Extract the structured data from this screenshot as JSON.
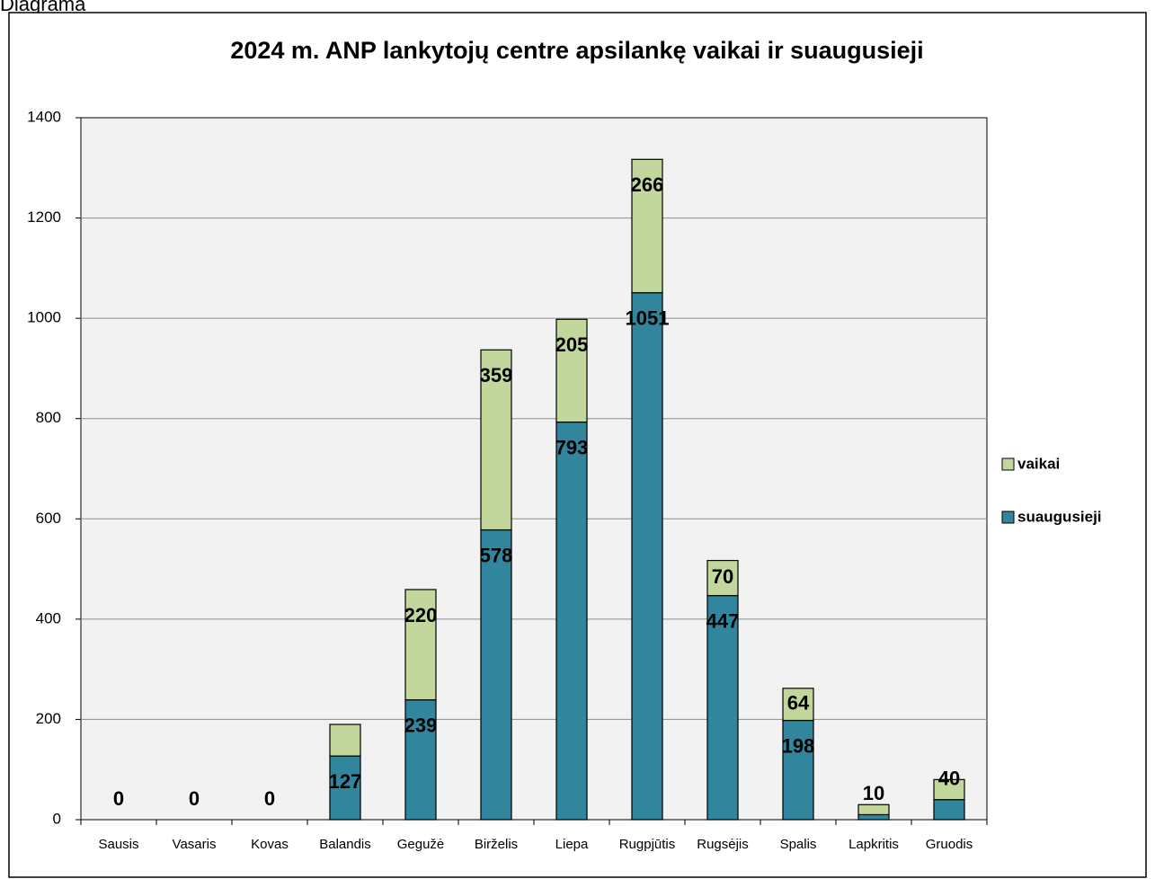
{
  "chart_data": {
    "type": "stacked_bar",
    "caption": "Diagrama",
    "title": "2024 m. ANP lankytojų centre apsilankę vaikai ir suaugusieji",
    "categories": [
      "Sausis",
      "Vasaris",
      "Kovas",
      "Balandis",
      "Gegužė",
      "Birželis",
      "Liepa",
      "Rugpjūtis",
      "Rugsėjis",
      "Spalis",
      "Lapkritis",
      "Gruodis"
    ],
    "series": [
      {
        "name": "suaugusieji",
        "color": "#31859c",
        "values": [
          0,
          0,
          0,
          127,
          239,
          578,
          793,
          1051,
          447,
          198,
          10,
          40
        ],
        "value_labels": [
          "0",
          "0",
          "0",
          "127",
          "239",
          "578",
          "793",
          "1051",
          "447",
          "198",
          "10",
          "40"
        ]
      },
      {
        "name": "vaikai",
        "color": "#c3d69b",
        "values": [
          0,
          0,
          0,
          63,
          220,
          359,
          205,
          266,
          70,
          64,
          20,
          40
        ],
        "value_labels": [
          null,
          null,
          null,
          null,
          "220",
          "359",
          "205",
          "266",
          "70",
          "64",
          null,
          null
        ]
      }
    ],
    "ylim": [
      0,
      1400
    ],
    "yticks": [
      0,
      200,
      400,
      600,
      800,
      1000,
      1200,
      1400
    ],
    "grid": true,
    "legend": "right"
  }
}
